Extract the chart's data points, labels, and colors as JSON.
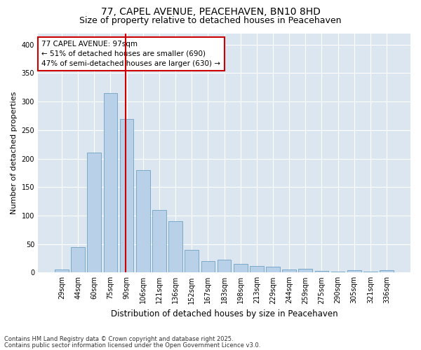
{
  "title1": "77, CAPEL AVENUE, PEACEHAVEN, BN10 8HD",
  "title2": "Size of property relative to detached houses in Peacehaven",
  "xlabel": "Distribution of detached houses by size in Peacehaven",
  "ylabel": "Number of detached properties",
  "categories": [
    "29sqm",
    "44sqm",
    "60sqm",
    "75sqm",
    "90sqm",
    "106sqm",
    "121sqm",
    "136sqm",
    "152sqm",
    "167sqm",
    "183sqm",
    "198sqm",
    "213sqm",
    "229sqm",
    "244sqm",
    "259sqm",
    "275sqm",
    "290sqm",
    "305sqm",
    "321sqm",
    "336sqm"
  ],
  "values": [
    5,
    45,
    210,
    315,
    270,
    180,
    110,
    90,
    40,
    20,
    22,
    15,
    12,
    10,
    5,
    6,
    3,
    1,
    4,
    2,
    4
  ],
  "bar_color": "#b8d0e8",
  "bar_edgecolor": "#7aaac8",
  "vline_color": "#cc0000",
  "vline_xindex": 4,
  "annotation_text": "77 CAPEL AVENUE: 97sqm\n← 51% of detached houses are smaller (690)\n47% of semi-detached houses are larger (630) →",
  "annotation_box_facecolor": "#ffffff",
  "annotation_box_edgecolor": "#cc0000",
  "ylim": [
    0,
    420
  ],
  "yticks": [
    0,
    50,
    100,
    150,
    200,
    250,
    300,
    350,
    400
  ],
  "background_color": "#dce6f0",
  "footer1": "Contains HM Land Registry data © Crown copyright and database right 2025.",
  "footer2": "Contains public sector information licensed under the Open Government Licence v3.0.",
  "title_fontsize": 10,
  "subtitle_fontsize": 9,
  "tick_fontsize": 7,
  "ylabel_fontsize": 8,
  "xlabel_fontsize": 8.5,
  "annotation_fontsize": 7.5
}
